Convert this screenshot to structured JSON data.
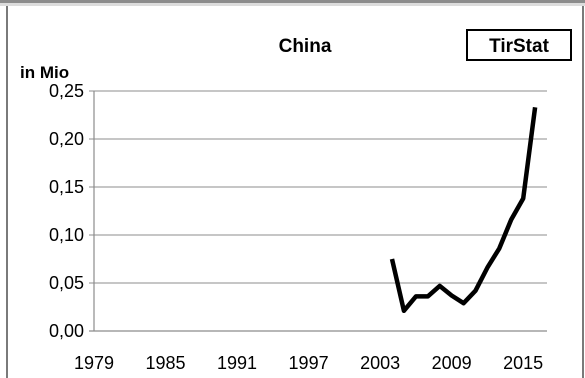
{
  "chart_data": {
    "type": "line",
    "title": "China",
    "badge": "TirStat",
    "ylabel": "in Mio",
    "xlabel": "",
    "ylim": [
      0,
      0.25
    ],
    "xlim": [
      1979,
      2017
    ],
    "y_ticks": [
      {
        "value": 0.0,
        "label": "0,00"
      },
      {
        "value": 0.05,
        "label": "0,05"
      },
      {
        "value": 0.1,
        "label": "0,10"
      },
      {
        "value": 0.15,
        "label": "0,15"
      },
      {
        "value": 0.2,
        "label": "0,20"
      },
      {
        "value": 0.25,
        "label": "0,25"
      }
    ],
    "x_ticks": [
      {
        "value": 1979,
        "label": "1979"
      },
      {
        "value": 1985,
        "label": "1985"
      },
      {
        "value": 1991,
        "label": "1991"
      },
      {
        "value": 1997,
        "label": "1997"
      },
      {
        "value": 2003,
        "label": "2003"
      },
      {
        "value": 2009,
        "label": "2009"
      },
      {
        "value": 2015,
        "label": "2015"
      }
    ],
    "grid": true,
    "line_color": "#000000",
    "grid_color": "#8c8c8c",
    "series": [
      {
        "x": [
          2004,
          2005,
          2006,
          2007,
          2008,
          2009,
          2010,
          2011,
          2012,
          2013,
          2014,
          2015,
          2016
        ],
        "values": [
          0.075,
          0.021,
          0.036,
          0.036,
          0.047,
          0.037,
          0.029,
          0.042,
          0.066,
          0.086,
          0.116,
          0.138,
          0.233
        ]
      }
    ]
  }
}
